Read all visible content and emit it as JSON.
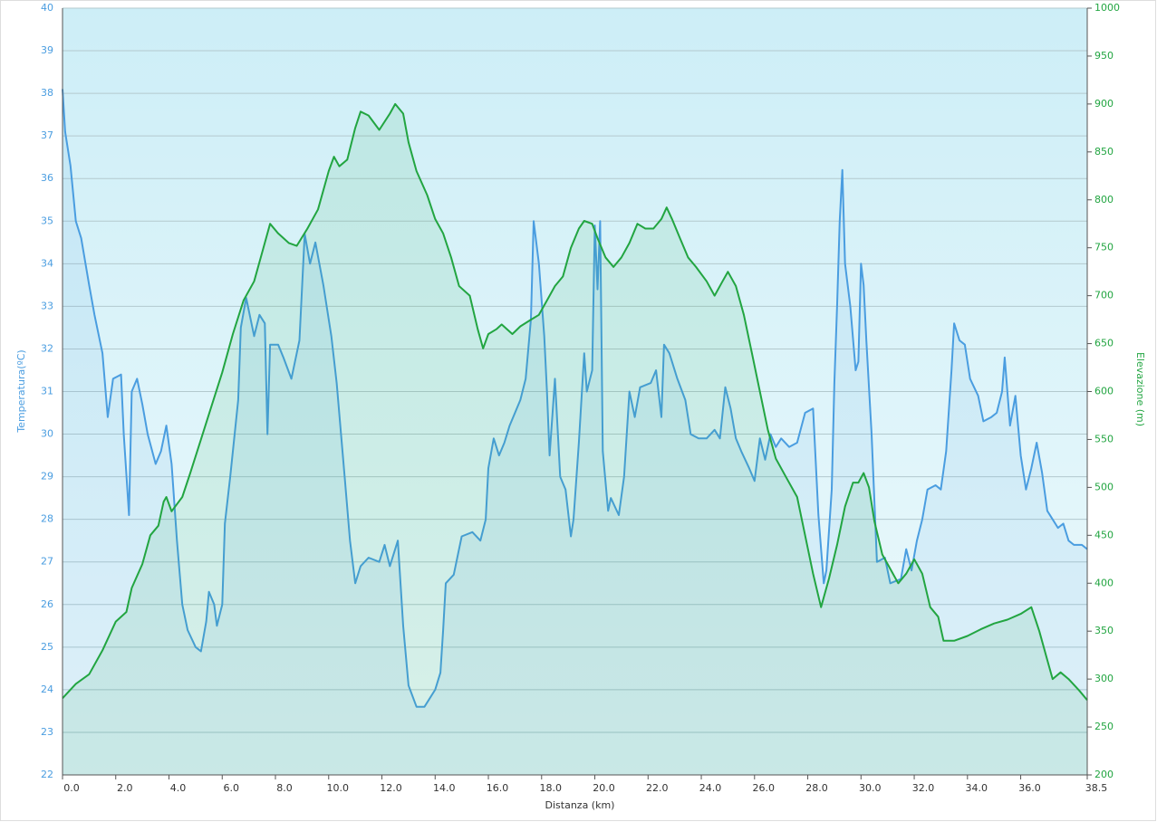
{
  "chart_data": {
    "type": "line",
    "x_label": "Distanza  (km)",
    "y_label": "Temperatura(ºC)",
    "y2_label": "Elevazione (m)",
    "xlim": [
      0,
      38.5
    ],
    "xticks": [
      {
        "value": 0,
        "label": "0.0"
      },
      {
        "value": 2,
        "label": "2.0"
      },
      {
        "value": 4,
        "label": "4.0"
      },
      {
        "value": 6,
        "label": "6.0"
      },
      {
        "value": 8,
        "label": "8.0"
      },
      {
        "value": 10,
        "label": "10.0"
      },
      {
        "value": 12,
        "label": "12.0"
      },
      {
        "value": 14,
        "label": "14.0"
      },
      {
        "value": 16,
        "label": "16.0"
      },
      {
        "value": 18,
        "label": "18.0"
      },
      {
        "value": 20,
        "label": "20.0"
      },
      {
        "value": 22,
        "label": "22.0"
      },
      {
        "value": 24,
        "label": "24.0"
      },
      {
        "value": 26,
        "label": "26.0"
      },
      {
        "value": 28,
        "label": "28.0"
      },
      {
        "value": 30,
        "label": "30.0"
      },
      {
        "value": 32,
        "label": "32.0"
      },
      {
        "value": 34,
        "label": "34.0"
      },
      {
        "value": 36,
        "label": "36.0"
      },
      38.5
    ],
    "ylim": [
      22,
      40
    ],
    "yticks": [
      22,
      23,
      24,
      25,
      26,
      27,
      28,
      29,
      30,
      31,
      32,
      33,
      34,
      35,
      36,
      37,
      38,
      39,
      40
    ],
    "y2lim": [
      200,
      1000
    ],
    "y2ticks": [
      200,
      250,
      300,
      350,
      400,
      450,
      500,
      550,
      600,
      650,
      700,
      750,
      800,
      850,
      900,
      950,
      1000
    ],
    "grid": true,
    "series": [
      {
        "name": "Temperatura",
        "color": "#4a9de0",
        "axis": "y",
        "x": [
          0,
          0.1,
          0.3,
          0.5,
          0.7,
          1.0,
          1.2,
          1.5,
          1.7,
          1.9,
          2.2,
          2.3,
          2.5,
          2.6,
          2.8,
          3.0,
          3.2,
          3.5,
          3.7,
          3.9,
          4.1,
          4.3,
          4.5,
          4.7,
          5.0,
          5.2,
          5.4,
          5.5,
          5.7,
          5.8,
          6.0,
          6.1,
          6.3,
          6.6,
          6.7,
          6.9,
          7.2,
          7.4,
          7.6,
          7.7,
          7.8,
          8.1,
          8.3,
          8.6,
          8.9,
          9.1,
          9.3,
          9.5,
          9.8,
          10.1,
          10.3,
          10.6,
          10.8,
          11.0,
          11.2,
          11.5,
          11.9,
          12.1,
          12.3,
          12.6,
          12.8,
          13.0,
          13.3,
          13.6,
          14.0,
          14.2,
          14.3,
          14.4,
          14.7,
          15.0,
          15.4,
          15.7,
          15.9,
          16.0,
          16.2,
          16.4,
          16.6,
          16.8,
          17.0,
          17.2,
          17.4,
          17.6,
          17.7,
          17.9,
          18.1,
          18.2,
          18.3,
          18.5,
          18.7,
          18.9,
          19.1,
          19.2,
          19.4,
          19.6,
          19.7,
          19.9,
          20.0,
          20.1,
          20.2,
          20.3,
          20.5,
          20.6,
          20.9,
          21.1,
          21.3,
          21.5,
          21.7,
          22.1,
          22.3,
          22.5,
          22.6,
          22.8,
          23.1,
          23.4,
          23.6,
          23.9,
          24.2,
          24.5,
          24.7,
          24.9,
          25.1,
          25.3,
          25.5,
          25.8,
          26.0,
          26.2,
          26.4,
          26.6,
          26.8,
          27.0,
          27.3,
          27.6,
          27.9,
          28.2,
          28.4,
          28.6,
          28.7,
          28.9,
          29.0,
          29.1,
          29.2,
          29.3,
          29.4,
          29.6,
          29.8,
          29.9,
          30.0,
          30.1,
          30.2,
          30.4,
          30.6,
          30.9,
          31.1,
          31.5,
          31.7,
          31.9,
          32.1,
          32.3,
          32.5,
          32.8,
          33.0,
          33.2,
          33.4,
          33.5,
          33.7,
          33.9,
          34.1,
          34.4,
          34.6,
          34.9,
          35.1,
          35.3,
          35.4,
          35.6,
          35.8,
          36.0,
          36.2,
          36.4,
          36.6,
          36.8,
          37.0,
          37.2,
          37.4,
          37.6,
          37.8,
          38.0,
          38.3,
          38.5
        ],
        "values": [
          38.1,
          37.1,
          36.3,
          35.0,
          34.6,
          33.5,
          32.8,
          31.9,
          30.4,
          31.3,
          31.4,
          30.0,
          28.1,
          31.0,
          31.3,
          30.7,
          30.0,
          29.3,
          29.6,
          30.2,
          29.3,
          27.5,
          26.0,
          25.4,
          25.0,
          24.9,
          25.6,
          26.3,
          26.0,
          25.5,
          26.0,
          27.9,
          29.0,
          30.8,
          32.5,
          33.2,
          32.3,
          32.8,
          32.6,
          30.0,
          32.1,
          32.1,
          31.8,
          31.3,
          32.2,
          34.7,
          34.0,
          34.5,
          33.5,
          32.3,
          31.2,
          29.0,
          27.5,
          26.5,
          26.9,
          27.1,
          27.0,
          27.4,
          26.9,
          27.5,
          25.5,
          24.1,
          23.6,
          23.6,
          24.0,
          24.4,
          25.4,
          26.5,
          26.7,
          27.6,
          27.7,
          27.5,
          28.0,
          29.2,
          29.9,
          29.5,
          29.8,
          30.2,
          30.5,
          30.8,
          31.3,
          32.7,
          35.0,
          34.0,
          32.3,
          31.0,
          29.5,
          31.3,
          29.0,
          28.7,
          27.6,
          28.0,
          29.8,
          31.9,
          31.0,
          31.5,
          34.9,
          33.4,
          35.0,
          29.6,
          28.2,
          28.5,
          28.1,
          29.0,
          31.0,
          30.4,
          31.1,
          31.2,
          31.5,
          30.4,
          32.1,
          31.9,
          31.3,
          30.8,
          30.0,
          29.9,
          29.9,
          30.1,
          29.9,
          31.1,
          30.6,
          29.9,
          29.6,
          29.2,
          28.9,
          29.9,
          29.4,
          30.0,
          29.7,
          29.9,
          29.7,
          29.8,
          30.5,
          30.6,
          28.1,
          26.5,
          26.8,
          28.7,
          31.2,
          33.0,
          35.0,
          36.2,
          34.0,
          33.0,
          31.5,
          31.7,
          34.0,
          33.5,
          32.2,
          30.0,
          27.0,
          27.1,
          26.5,
          26.6,
          27.3,
          26.8,
          27.5,
          28.0,
          28.7,
          28.8,
          28.7,
          29.6,
          31.5,
          32.6,
          32.2,
          32.1,
          31.3,
          30.9,
          30.3,
          30.4,
          30.5,
          31.0,
          31.8,
          30.2,
          30.9,
          29.5,
          28.7,
          29.2,
          29.8,
          29.1,
          28.2,
          28.0,
          27.8,
          27.9,
          27.5,
          27.4,
          27.4,
          27.3
        ]
      },
      {
        "name": "Elevazione",
        "color": "#22a541",
        "axis": "y2",
        "x": [
          0,
          0.5,
          1.0,
          1.5,
          2.0,
          2.4,
          2.6,
          3.0,
          3.3,
          3.6,
          3.8,
          3.9,
          4.1,
          4.5,
          4.8,
          5.2,
          5.6,
          6.0,
          6.4,
          6.8,
          7.2,
          7.5,
          7.8,
          8.1,
          8.5,
          8.8,
          9.2,
          9.6,
          10.0,
          10.2,
          10.4,
          10.7,
          11.0,
          11.2,
          11.5,
          11.9,
          12.3,
          12.5,
          12.8,
          13.0,
          13.3,
          13.7,
          14.0,
          14.3,
          14.6,
          14.9,
          15.3,
          15.6,
          15.8,
          16.0,
          16.3,
          16.5,
          16.9,
          17.2,
          17.6,
          17.9,
          18.2,
          18.5,
          18.8,
          19.1,
          19.4,
          19.6,
          19.9,
          20.1,
          20.4,
          20.7,
          21.0,
          21.3,
          21.6,
          21.9,
          22.2,
          22.5,
          22.7,
          22.9,
          23.2,
          23.5,
          23.8,
          24.2,
          24.5,
          24.8,
          25.0,
          25.3,
          25.6,
          25.9,
          26.2,
          26.5,
          26.8,
          27.2,
          27.6,
          27.9,
          28.2,
          28.5,
          28.8,
          29.1,
          29.4,
          29.7,
          29.9,
          30.1,
          30.3,
          30.5,
          30.8,
          31.1,
          31.4,
          31.7,
          32.0,
          32.3,
          32.6,
          32.9,
          33.1,
          33.5,
          34.0,
          34.5,
          35.0,
          35.5,
          36.0,
          36.4,
          36.7,
          37.0,
          37.2,
          37.5,
          37.8,
          38.2,
          38.5
        ],
        "values": [
          280,
          295,
          305,
          330,
          360,
          370,
          395,
          420,
          450,
          460,
          485,
          490,
          475,
          490,
          515,
          550,
          585,
          620,
          660,
          695,
          715,
          745,
          775,
          765,
          755,
          752,
          770,
          790,
          830,
          845,
          835,
          842,
          875,
          892,
          888,
          873,
          890,
          900,
          890,
          860,
          830,
          805,
          780,
          765,
          740,
          710,
          700,
          665,
          645,
          660,
          665,
          670,
          660,
          668,
          675,
          680,
          695,
          710,
          720,
          750,
          770,
          778,
          775,
          760,
          740,
          730,
          740,
          755,
          775,
          770,
          770,
          780,
          792,
          780,
          760,
          740,
          730,
          715,
          700,
          715,
          725,
          710,
          680,
          640,
          600,
          560,
          530,
          510,
          490,
          450,
          410,
          375,
          405,
          440,
          480,
          505,
          505,
          515,
          500,
          465,
          430,
          415,
          400,
          410,
          425,
          410,
          375,
          365,
          340,
          340,
          345,
          352,
          358,
          362,
          368,
          375,
          350,
          320,
          300,
          307,
          300,
          288,
          278
        ]
      }
    ]
  }
}
